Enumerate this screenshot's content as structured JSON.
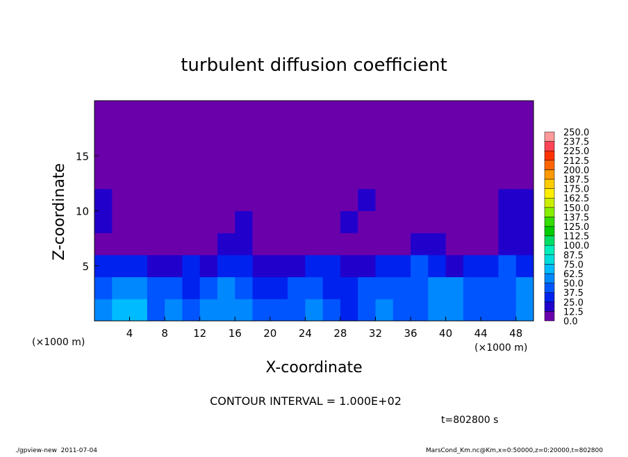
{
  "chart_data": {
    "type": "heatmap",
    "title": "turbulent diffusion coefficient",
    "x_label": "X-coordinate",
    "y_label": "Z-coordinate",
    "x_unit": "(×1000 m)",
    "y_unit": "(×1000 m)",
    "note": "CONTOUR INTERVAL = 1.000E+02",
    "time_label": "t=802800 s",
    "footer_left": "./gpview-new  2011-07-04",
    "footer_right": "MarsCond_Km.nc@Km,x=0:50000,z=0:20000,t=802800",
    "xlim": [
      0,
      50
    ],
    "ylim": [
      0,
      20
    ],
    "xticks": [
      4,
      8,
      12,
      16,
      20,
      24,
      28,
      32,
      36,
      40,
      44,
      48
    ],
    "yticks": [
      5,
      10,
      15
    ],
    "x": [
      1,
      3,
      5,
      7,
      9,
      11,
      13,
      15,
      17,
      19,
      21,
      23,
      25,
      27,
      29,
      31,
      33,
      35,
      37,
      39,
      41,
      43,
      45,
      47,
      49
    ],
    "y": [
      1,
      3,
      5,
      7,
      9,
      11,
      13,
      15,
      17,
      19
    ],
    "z": [
      [
        55,
        70,
        65,
        45,
        50,
        45,
        55,
        60,
        50,
        45,
        40,
        45,
        50,
        40,
        35,
        45,
        50,
        45,
        40,
        55,
        60,
        45,
        40,
        45,
        50
      ],
      [
        45,
        60,
        55,
        40,
        40,
        35,
        45,
        50,
        45,
        35,
        30,
        40,
        45,
        35,
        30,
        40,
        45,
        40,
        45,
        60,
        55,
        40,
        40,
        45,
        50
      ],
      [
        35,
        30,
        25,
        15,
        20,
        25,
        20,
        35,
        30,
        20,
        15,
        20,
        25,
        30,
        20,
        15,
        30,
        35,
        40,
        30,
        20,
        25,
        35,
        40,
        35
      ],
      [
        8,
        5,
        5,
        5,
        5,
        5,
        10,
        20,
        15,
        5,
        5,
        5,
        5,
        5,
        5,
        5,
        5,
        10,
        15,
        20,
        10,
        5,
        10,
        20,
        15
      ],
      [
        15,
        10,
        5,
        5,
        5,
        10,
        5,
        10,
        15,
        5,
        10,
        5,
        10,
        5,
        15,
        10,
        10,
        5,
        5,
        10,
        5,
        5,
        10,
        15,
        20
      ],
      [
        15,
        5,
        5,
        5,
        5,
        5,
        5,
        10,
        5,
        5,
        10,
        5,
        5,
        10,
        5,
        15,
        10,
        5,
        10,
        10,
        5,
        5,
        5,
        15,
        15
      ],
      [
        0,
        0,
        0,
        0,
        0,
        0,
        0,
        0,
        0,
        5,
        0,
        5,
        0,
        5,
        0,
        5,
        5,
        0,
        5,
        0,
        5,
        0,
        0,
        0,
        0
      ],
      [
        0,
        0,
        0,
        0,
        0,
        0,
        0,
        0,
        0,
        0,
        0,
        0,
        0,
        0,
        0,
        0,
        0,
        0,
        0,
        0,
        0,
        0,
        0,
        0,
        0
      ],
      [
        0,
        0,
        0,
        0,
        0,
        0,
        0,
        0,
        0,
        0,
        0,
        0,
        0,
        0,
        0,
        0,
        0,
        0,
        0,
        0,
        0,
        0,
        0,
        0,
        0
      ],
      [
        0,
        0,
        0,
        0,
        0,
        0,
        0,
        0,
        0,
        0,
        0,
        0,
        0,
        0,
        0,
        0,
        0,
        0,
        0,
        0,
        0,
        0,
        0,
        0,
        0
      ]
    ],
    "levels": [
      {
        "value": 0,
        "label": "0.0"
      },
      12.5,
      {
        "value": 25,
        "label": "25.0"
      },
      37.5,
      {
        "value": 50,
        "label": "50.0"
      },
      62.5,
      {
        "value": 75,
        "label": "75.0"
      },
      87.5,
      {
        "value": 100,
        "label": "100.0"
      },
      112.5,
      {
        "value": 125,
        "label": "125.0"
      },
      137.5,
      {
        "value": 150,
        "label": "150.0"
      },
      162.5,
      {
        "value": 175,
        "label": "175.0"
      },
      187.5,
      {
        "value": 200,
        "label": "200.0"
      },
      212.5,
      {
        "value": 225,
        "label": "225.0"
      },
      237.5,
      {
        "value": 250,
        "label": "250.0"
      }
    ],
    "colors": [
      "#6a00aa",
      "#2200cc",
      "#0022ee",
      "#0055ff",
      "#0088ff",
      "#00bbff",
      "#00dddd",
      "#00eebb",
      "#00dd66",
      "#00cc00",
      "#33dd00",
      "#88ee00",
      "#ccee00",
      "#ffee00",
      "#ffcc00",
      "#ff9900",
      "#ff6600",
      "#ff3300",
      "#ff4455",
      "#ff9999"
    ]
  }
}
